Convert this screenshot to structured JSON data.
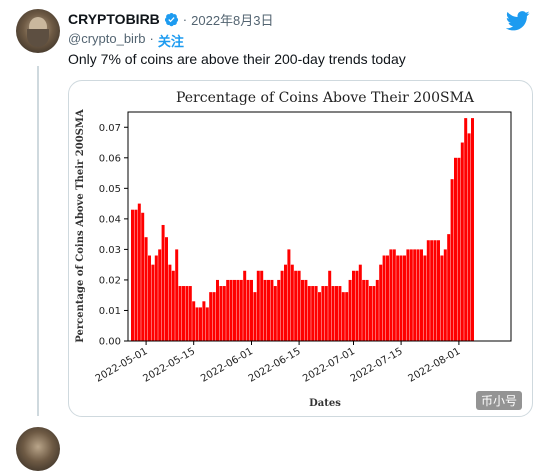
{
  "tweet": {
    "display_name": "CRYPTOBIRB",
    "date": "2022年8月3日",
    "separator": "·",
    "handle": "@crypto_birb",
    "follow_label": "关注",
    "text": "Only 7% of coins are above their 200-day trends today",
    "brand_color": "#1d9bf0",
    "icons": [
      "verified-badge-icon",
      "twitter-bird-icon"
    ]
  },
  "watermark": "币小号",
  "chart_data": {
    "type": "bar",
    "title": "Percentage of Coins Above Their 200SMA",
    "xlabel": "Dates",
    "ylabel": "Percentage of Coins Above Their 200SMA",
    "bar_color": "#ff0000",
    "ylim": [
      0,
      0.075
    ],
    "yticks": [
      "0.00",
      "0.01",
      "0.02",
      "0.03",
      "0.04",
      "0.05",
      "0.06",
      "0.07"
    ],
    "xticks": [
      "2022-05-01",
      "2022-05-15",
      "2022-06-01",
      "2022-06-15",
      "2022-07-01",
      "2022-07-15",
      "2022-08-01"
    ],
    "x_start": "2022-04-27",
    "values": [
      0.043,
      0.043,
      0.045,
      0.042,
      0.034,
      0.028,
      0.025,
      0.028,
      0.03,
      0.038,
      0.034,
      0.025,
      0.023,
      0.03,
      0.018,
      0.018,
      0.018,
      0.018,
      0.013,
      0.011,
      0.011,
      0.013,
      0.011,
      0.016,
      0.016,
      0.02,
      0.018,
      0.018,
      0.02,
      0.02,
      0.02,
      0.02,
      0.02,
      0.023,
      0.02,
      0.02,
      0.016,
      0.023,
      0.023,
      0.02,
      0.02,
      0.02,
      0.018,
      0.02,
      0.023,
      0.025,
      0.03,
      0.025,
      0.023,
      0.023,
      0.02,
      0.02,
      0.018,
      0.018,
      0.018,
      0.016,
      0.018,
      0.018,
      0.023,
      0.018,
      0.018,
      0.018,
      0.016,
      0.016,
      0.02,
      0.023,
      0.023,
      0.025,
      0.02,
      0.02,
      0.018,
      0.018,
      0.02,
      0.025,
      0.028,
      0.028,
      0.03,
      0.03,
      0.028,
      0.028,
      0.028,
      0.03,
      0.03,
      0.03,
      0.03,
      0.03,
      0.028,
      0.033,
      0.033,
      0.033,
      0.033,
      0.028,
      0.03,
      0.035,
      0.053,
      0.06,
      0.06,
      0.065,
      0.073,
      0.068,
      0.073
    ]
  }
}
